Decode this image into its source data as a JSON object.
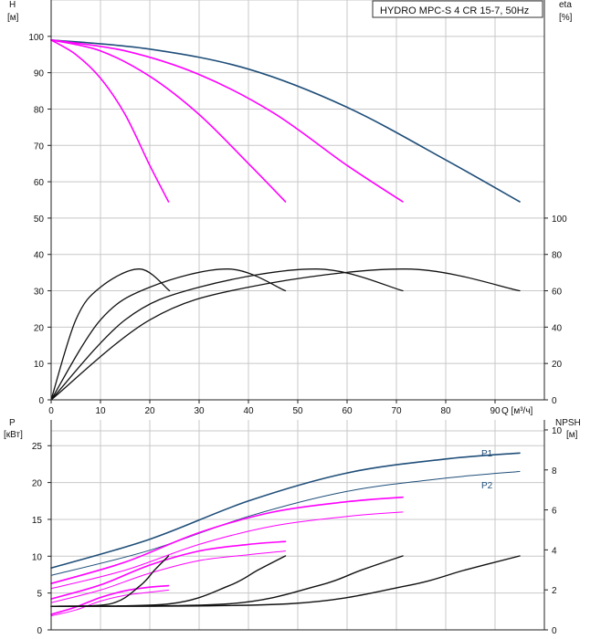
{
  "chart_data": {
    "type": "line",
    "title": "HYDRO MPC-S 4 CR 15-7, 50Hz",
    "colors": {
      "primary": "#1f4e79",
      "partial": "#ff00ff",
      "black": "#111111",
      "grid": "#c8c8c8"
    },
    "x_axis": {
      "label": "Q [м³/ч]",
      "ticks": [
        0,
        10,
        20,
        30,
        40,
        50,
        60,
        70,
        80,
        90
      ],
      "range": [
        0,
        100
      ]
    },
    "top_panel": {
      "left_axis": {
        "label_line1": "H",
        "label_line2": "[м]",
        "range": [
          0,
          110
        ],
        "ticks": [
          0,
          10,
          20,
          30,
          40,
          50,
          60,
          70,
          80,
          90,
          100
        ]
      },
      "right_axis": {
        "label_line1": "eta",
        "label_line2": "[%]",
        "range": [
          0,
          220
        ],
        "ticks": [
          0,
          20,
          40,
          60,
          80,
          100
        ]
      },
      "head_curves": [
        {
          "pumps": 4,
          "color": "primary",
          "x": [
            0,
            20,
            40,
            60,
            80,
            95
          ],
          "y": [
            99,
            96.5,
            91,
            80.5,
            66,
            54.5
          ]
        },
        {
          "pumps": 3,
          "color": "partial",
          "x": [
            0,
            15,
            30,
            45,
            60,
            71.3
          ],
          "y": [
            99,
            96,
            89.5,
            79,
            64.5,
            54.5
          ]
        },
        {
          "pumps": 2,
          "color": "partial",
          "x": [
            0,
            10,
            20,
            30,
            40,
            47.5
          ],
          "y": [
            99,
            96,
            89,
            78.5,
            65,
            54.5
          ]
        },
        {
          "pumps": 1,
          "color": "partial",
          "x": [
            0,
            5,
            10,
            15,
            20,
            23.8
          ],
          "y": [
            99,
            95,
            88.5,
            78.5,
            64.5,
            54.5
          ]
        }
      ],
      "efficiency_curves": [
        {
          "pumps": 1,
          "x": [
            0,
            5,
            10,
            18,
            24
          ],
          "y": [
            0,
            44,
            62,
            72,
            60
          ]
        },
        {
          "pumps": 2,
          "x": [
            0,
            10,
            20,
            36,
            47.5
          ],
          "y": [
            0,
            44,
            62,
            72,
            60
          ]
        },
        {
          "pumps": 3,
          "x": [
            0,
            15,
            30,
            54,
            71.3
          ],
          "y": [
            0,
            44,
            62,
            72,
            60
          ]
        },
        {
          "pumps": 4,
          "x": [
            0,
            20,
            40,
            72,
            95
          ],
          "y": [
            0,
            44,
            62,
            72,
            60
          ]
        }
      ]
    },
    "bottom_panel": {
      "left_axis": {
        "label_line1": "P",
        "label_line2": "[кВт]",
        "range": [
          0,
          28.5
        ],
        "ticks": [
          0,
          5,
          10,
          15,
          20,
          25
        ]
      },
      "right_axis": {
        "label_line1": "NPSH",
        "label_line2": "[м]",
        "range": [
          0,
          10.5
        ],
        "ticks": [
          0,
          2,
          4,
          6,
          8,
          10
        ]
      },
      "power_curves": [
        {
          "name": "P1",
          "pumps": 4,
          "color": "primary",
          "x": [
            0,
            20,
            40,
            60,
            80,
            95
          ],
          "y": [
            8.4,
            12.3,
            17.5,
            21.3,
            23.2,
            24.0
          ]
        },
        {
          "name": "P2",
          "pumps": 4,
          "color": "primary",
          "x": [
            0,
            20,
            40,
            60,
            80,
            95
          ],
          "y": [
            7.4,
            10.8,
            15.4,
            18.8,
            20.6,
            21.5
          ]
        },
        {
          "pumps": 3,
          "color": "partial",
          "x": [
            0,
            15,
            30,
            45,
            60,
            71.3
          ],
          "y": [
            6.3,
            9.2,
            13.2,
            16.0,
            17.4,
            18.0
          ]
        },
        {
          "pumps": 3,
          "color": "partial",
          "x": [
            0,
            15,
            30,
            45,
            60,
            71.3
          ],
          "y": [
            5.6,
            8.1,
            11.6,
            14.1,
            15.4,
            16.0
          ]
        },
        {
          "pumps": 2,
          "color": "partial",
          "x": [
            0,
            10,
            20,
            30,
            40,
            47.5
          ],
          "y": [
            4.2,
            6.1,
            8.8,
            10.7,
            11.6,
            12.0
          ]
        },
        {
          "pumps": 2,
          "color": "partial",
          "x": [
            0,
            10,
            20,
            30,
            40,
            47.5
          ],
          "y": [
            3.7,
            5.4,
            7.7,
            9.4,
            10.2,
            10.7
          ]
        },
        {
          "pumps": 1,
          "color": "partial",
          "x": [
            0,
            5,
            10,
            15,
            20,
            23.8
          ],
          "y": [
            2.1,
            3.1,
            4.4,
            5.3,
            5.8,
            6.0
          ]
        },
        {
          "pumps": 1,
          "color": "partial",
          "x": [
            0,
            5,
            10,
            15,
            20,
            23.8
          ],
          "y": [
            1.9,
            2.7,
            3.9,
            4.7,
            5.1,
            5.4
          ]
        }
      ],
      "npsh_curves": [
        {
          "pumps": 1,
          "x": [
            0,
            12,
            18,
            21,
            23.8
          ],
          "y": [
            1.18,
            1.3,
            2.2,
            3.0,
            3.7
          ]
        },
        {
          "pumps": 2,
          "x": [
            0,
            24,
            36,
            42,
            47.5
          ],
          "y": [
            1.18,
            1.3,
            2.2,
            3.0,
            3.7
          ]
        },
        {
          "pumps": 3,
          "x": [
            0,
            36,
            54,
            63,
            71.3
          ],
          "y": [
            1.18,
            1.3,
            2.2,
            3.0,
            3.7
          ]
        },
        {
          "pumps": 4,
          "x": [
            0,
            48,
            72,
            84,
            95
          ],
          "y": [
            1.18,
            1.3,
            2.2,
            3.0,
            3.7
          ]
        }
      ]
    }
  }
}
